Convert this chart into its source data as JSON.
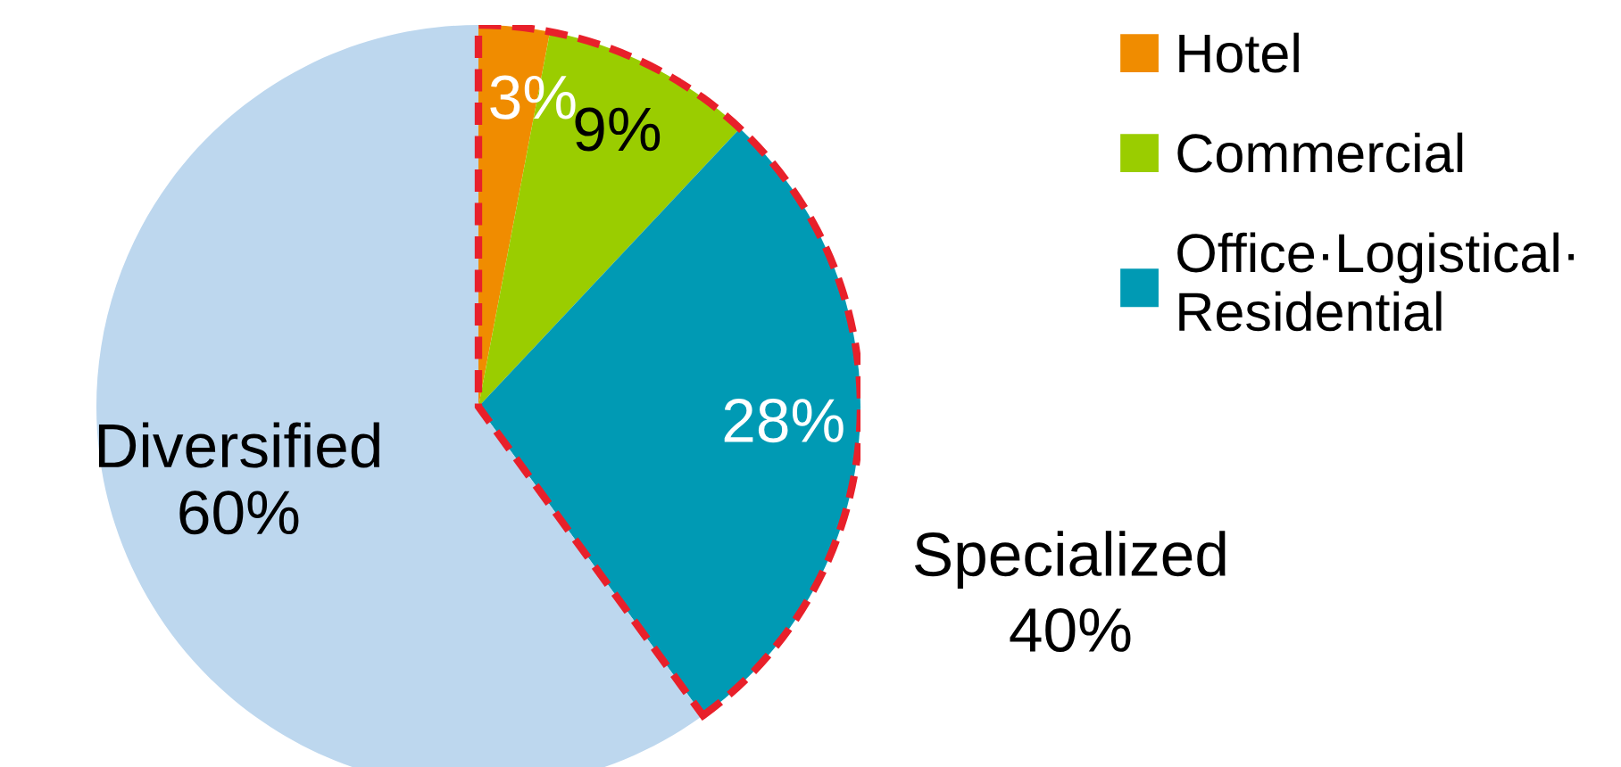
{
  "chart_data": {
    "type": "pie",
    "categories": [
      "Hotel",
      "Commercial",
      "Office·Logistical·\nResidential",
      "Diversified"
    ],
    "values": [
      3,
      9,
      28,
      60
    ],
    "colors": [
      "#f08c00",
      "#9acd00",
      "#009ab4",
      "#bdd7ee"
    ],
    "value_labels": [
      "3%",
      "9%",
      "28%",
      "60%"
    ],
    "legend": "top right",
    "annotations": [
      "Specialized\n40%"
    ]
  }
}
